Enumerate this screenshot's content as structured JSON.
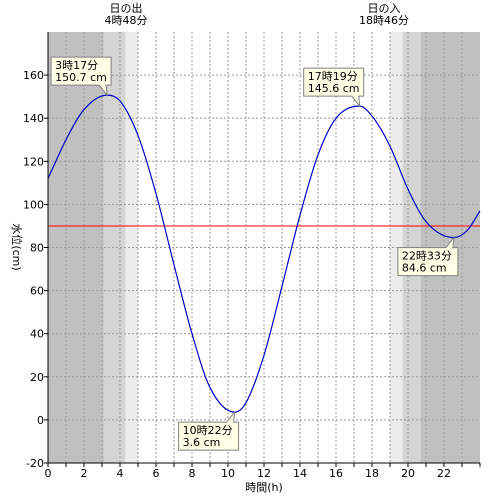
{
  "chart_data": {
    "type": "line",
    "xlabel": "時間(h)",
    "ylabel": "水位(cm)",
    "xlim": [
      0,
      24
    ],
    "ylim": [
      -20,
      180
    ],
    "x_ticks": [
      0,
      2,
      4,
      6,
      8,
      10,
      12,
      14,
      16,
      18,
      20,
      22
    ],
    "y_ticks": [
      -20,
      0,
      20,
      40,
      60,
      80,
      100,
      120,
      140,
      160
    ],
    "reference_line": {
      "value": 90,
      "color": "#ff0000"
    },
    "sunrise": {
      "label": "日の出",
      "time": "4時48分",
      "x": 4.8
    },
    "sunset": {
      "label": "日の入",
      "time": "18時46分",
      "x": 18.767
    },
    "twilight_shading": [
      {
        "from": 0,
        "to": 3.1,
        "shade": "dark"
      },
      {
        "from": 3.1,
        "to": 4.3,
        "shade": "mid"
      },
      {
        "from": 4.3,
        "to": 5.0,
        "shade": "light"
      },
      {
        "from": 19.0,
        "to": 19.7,
        "shade": "light"
      },
      {
        "from": 19.7,
        "to": 20.7,
        "shade": "mid"
      },
      {
        "from": 20.7,
        "to": 24,
        "shade": "dark"
      }
    ],
    "series": [
      {
        "color": "#0000cc",
        "points": [
          {
            "x": 0,
            "y": 112
          },
          {
            "x": 1,
            "y": 130
          },
          {
            "x": 2,
            "y": 144
          },
          {
            "x": 3.283,
            "y": 150.7
          },
          {
            "x": 4,
            "y": 148
          },
          {
            "x": 5,
            "y": 132
          },
          {
            "x": 6,
            "y": 105
          },
          {
            "x": 7,
            "y": 72
          },
          {
            "x": 8,
            "y": 40
          },
          {
            "x": 9,
            "y": 15
          },
          {
            "x": 10.367,
            "y": 3.6
          },
          {
            "x": 11,
            "y": 8
          },
          {
            "x": 12,
            "y": 30
          },
          {
            "x": 13,
            "y": 62
          },
          {
            "x": 14,
            "y": 95
          },
          {
            "x": 15,
            "y": 123
          },
          {
            "x": 16,
            "y": 140
          },
          {
            "x": 17.317,
            "y": 145.6
          },
          {
            "x": 18,
            "y": 141
          },
          {
            "x": 19,
            "y": 127
          },
          {
            "x": 20,
            "y": 107
          },
          {
            "x": 21,
            "y": 92
          },
          {
            "x": 22.55,
            "y": 84.6
          },
          {
            "x": 23.3,
            "y": 88
          },
          {
            "x": 24,
            "y": 97
          }
        ]
      }
    ],
    "annotations": [
      {
        "time": "3時17分",
        "value": "150.7 cm",
        "x": 3.283,
        "y": 150.7,
        "placement": "upper-left"
      },
      {
        "time": "10時22分",
        "value": "3.6 cm",
        "x": 10.367,
        "y": 3.6,
        "placement": "lower-left"
      },
      {
        "time": "17時19分",
        "value": "145.6 cm",
        "x": 17.317,
        "y": 145.6,
        "placement": "upper-left"
      },
      {
        "time": "22時33分",
        "value": "84.6 cm",
        "x": 22.55,
        "y": 84.6,
        "placement": "lower-left"
      }
    ]
  }
}
